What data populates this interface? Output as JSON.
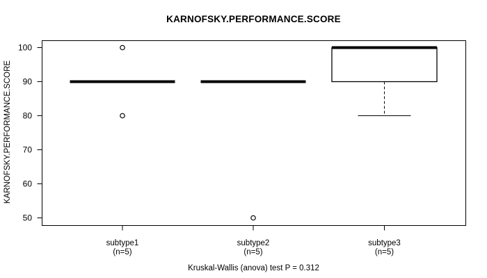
{
  "chart_data": {
    "type": "boxplot",
    "title": "KARNOFSKY.PERFORMANCE.SCORE",
    "ylabel": "KARNOFSKY.PERFORMANCE.SCORE",
    "xlabel": "",
    "caption": "Kruskal-Wallis (anova) test P = 0.312",
    "ylim": [
      50,
      100
    ],
    "yticks": [
      50,
      60,
      70,
      80,
      90,
      100
    ],
    "grid": false,
    "legend": "none",
    "colors": {
      "stroke": "#000000",
      "fill": "#ffffff",
      "background": "#ffffff"
    },
    "groups": [
      {
        "label": "subtype1",
        "sublabel": "(n=5)",
        "median": 90,
        "q1": 90,
        "q3": 90,
        "whisker_low": 90,
        "whisker_high": 90,
        "outliers": [
          100,
          80
        ]
      },
      {
        "label": "subtype2",
        "sublabel": "(n=5)",
        "median": 90,
        "q1": 90,
        "q3": 90,
        "whisker_low": 90,
        "whisker_high": 90,
        "outliers": [
          50
        ]
      },
      {
        "label": "subtype3",
        "sublabel": "(n=5)",
        "median": 100,
        "q1": 90,
        "q3": 100,
        "whisker_low": 80,
        "whisker_high": 100,
        "outliers": []
      }
    ]
  }
}
